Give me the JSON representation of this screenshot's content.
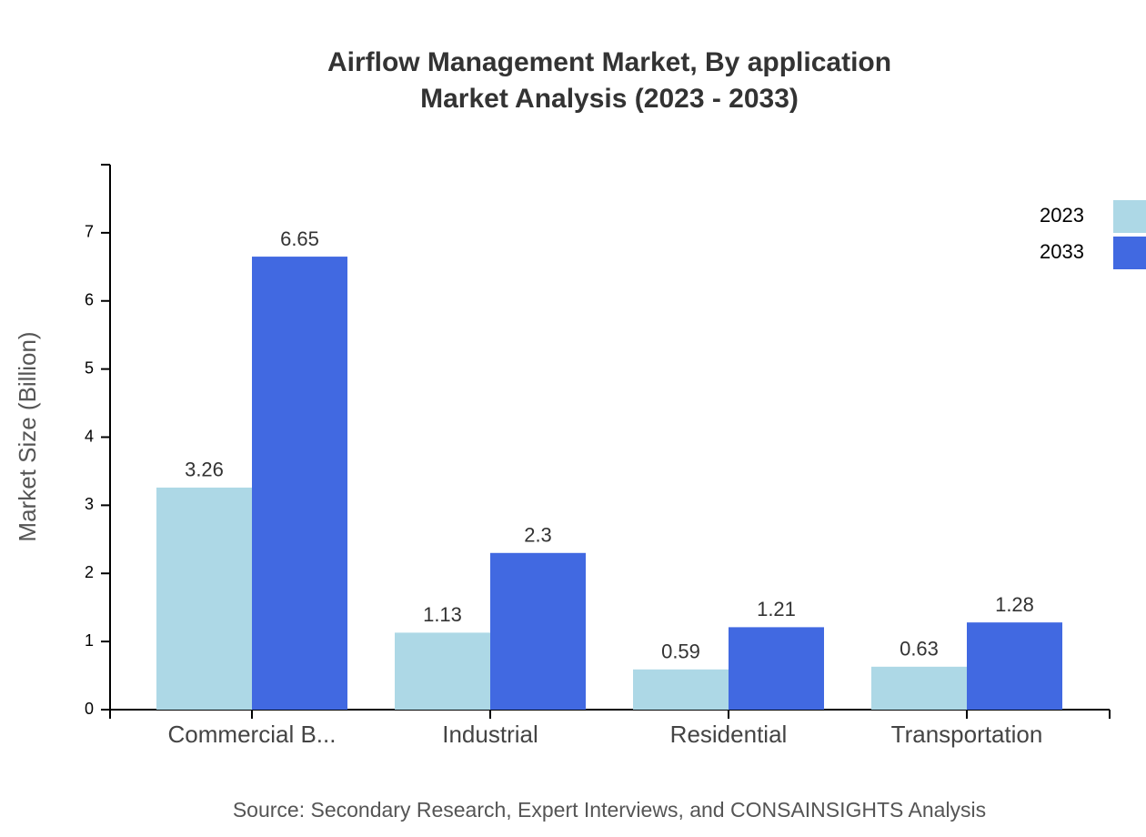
{
  "chart_data": {
    "type": "bar",
    "title": "Airflow Management Market, By application",
    "subtitle": "Market Analysis (2023 - 2033)",
    "y_label": "Market Size (Billion)",
    "source": "Source: Secondary Research, Expert Interviews, and CONSAINSIGHTS Analysis",
    "categories": [
      "Commercial B...",
      "Industrial",
      "Residential",
      "Transportation"
    ],
    "series": [
      {
        "name": "2023",
        "color": "#add8e6",
        "values": [
          3.26,
          1.13,
          0.59,
          0.63
        ]
      },
      {
        "name": "2033",
        "color": "#4169e1",
        "values": [
          6.65,
          2.3,
          1.21,
          1.28
        ]
      }
    ],
    "ylim": [
      0,
      8
    ],
    "yticks": [
      0,
      1,
      2,
      3,
      4,
      5,
      6,
      7
    ],
    "grid": false,
    "legend": "top-right"
  }
}
